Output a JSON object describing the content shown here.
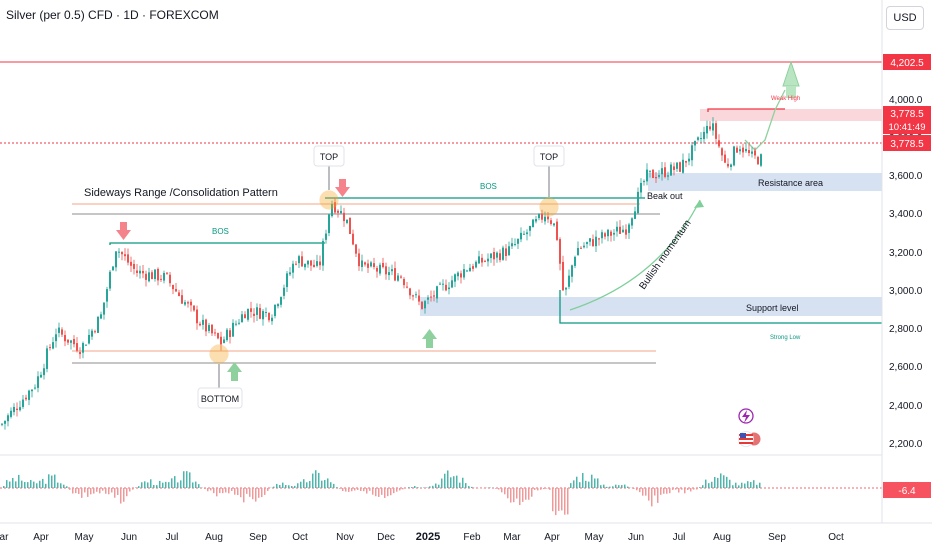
{
  "header": {
    "title": "Silver (per 0.5) CFD · 1D · FOREXCOM",
    "currency": "USD"
  },
  "price_axis": {
    "ticks": [
      "4,000.0",
      "3,800.0",
      "3,600.0",
      "3,400.0",
      "3,200.0",
      "3,000.0",
      "2,800.0",
      "2,600.0",
      "2,400.0",
      "2,200.0"
    ],
    "badges": {
      "high_line": "4,202.5",
      "last_price": "3,778.5",
      "countdown": "10:41:49",
      "dotted_price": "3,778.5",
      "indicator_value": "-6.4"
    },
    "badge_colors": {
      "red": "#f23645",
      "red_light": "#f7525f"
    }
  },
  "time_axis": {
    "labels": [
      "ar",
      "Apr",
      "May",
      "Jun",
      "Jul",
      "Aug",
      "Sep",
      "Oct",
      "Nov",
      "Dec",
      "2025",
      "Feb",
      "Mar",
      "Apr",
      "May",
      "Jun",
      "Jul",
      "Aug",
      "Sep",
      "Oct"
    ]
  },
  "annotations": {
    "sideways": "Sideways Range /Consolidation Pattern",
    "bos_left": "BOS",
    "bos_right": "BOS",
    "top_left": "TOP",
    "top_right": "TOP",
    "bottom": "BOTTOM",
    "breakout": "Beak out",
    "bullish": "Bullish momentum",
    "resistance": "Resistance area",
    "support": "Support level",
    "weak_high": "Weak High",
    "strong_low": "Strong Low"
  },
  "icons": [
    "lightning-icon",
    "us-flag-icon"
  ],
  "colors": {
    "up": "#26a69a",
    "down": "#ef5350",
    "zone_blue": "#cfdcf0",
    "zone_red": "#f7c6cb",
    "structure_green": "#089981",
    "arrow_green": "#8fd19e",
    "arrow_red": "#f4838b",
    "circle_orange": "#f5a623"
  },
  "chart_data": {
    "type": "candlestick",
    "symbol": "Silver (per 0.5) CFD",
    "interval": "1D",
    "y_ticks": [
      4000,
      3800,
      3600,
      3400,
      3200,
      3000,
      2800,
      2600,
      2400,
      2200
    ],
    "ylim": [
      2200,
      4202.5
    ],
    "path_anchors": [
      [
        0,
        2300
      ],
      [
        35,
        2520
      ],
      [
        55,
        2790
      ],
      [
        80,
        2700
      ],
      [
        100,
        2870
      ],
      [
        115,
        3230
      ],
      [
        135,
        3100
      ],
      [
        165,
        3070
      ],
      [
        200,
        2830
      ],
      [
        220,
        2730
      ],
      [
        245,
        2900
      ],
      [
        270,
        2880
      ],
      [
        295,
        3170
      ],
      [
        318,
        3120
      ],
      [
        330,
        3470
      ],
      [
        345,
        3380
      ],
      [
        360,
        3130
      ],
      [
        400,
        3080
      ],
      [
        420,
        2920
      ],
      [
        440,
        3010
      ],
      [
        465,
        3120
      ],
      [
        510,
        3220
      ],
      [
        530,
        3330
      ],
      [
        545,
        3410
      ],
      [
        555,
        3330
      ],
      [
        563,
        2960
      ],
      [
        575,
        3220
      ],
      [
        600,
        3280
      ],
      [
        625,
        3330
      ],
      [
        645,
        3600
      ],
      [
        660,
        3620
      ],
      [
        680,
        3650
      ],
      [
        695,
        3760
      ],
      [
        710,
        3880
      ],
      [
        725,
        3650
      ],
      [
        738,
        3770
      ],
      [
        750,
        3700
      ],
      [
        760,
        3690
      ]
    ],
    "histogram_note": "oscillator panel, last value -6.4"
  }
}
